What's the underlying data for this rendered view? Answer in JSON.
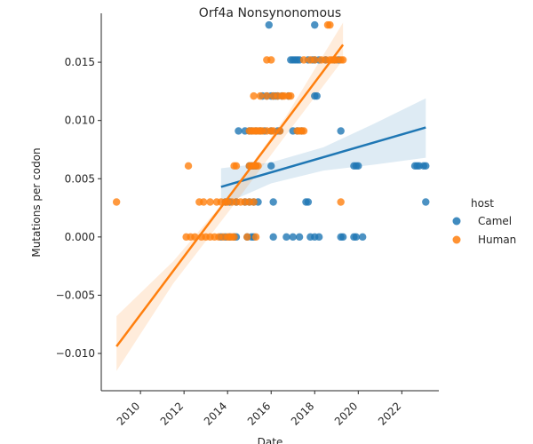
{
  "chart_data": {
    "type": "scatter",
    "title": "Orf4a Nonsynonomous",
    "xlabel": "Date",
    "ylabel": "Mutations per codon",
    "xlim": [
      2008.2,
      2023.7
    ],
    "ylim": [
      -0.0132,
      0.0192
    ],
    "x_ticks": [
      2010,
      2012,
      2014,
      2016,
      2018,
      2020,
      2022
    ],
    "x_tick_labels": [
      "2010",
      "2012",
      "2014",
      "2016",
      "2018",
      "2020",
      "2022"
    ],
    "y_ticks": [
      -0.01,
      -0.005,
      0.0,
      0.005,
      0.01,
      0.015
    ],
    "y_tick_labels": [
      "−0.010",
      "−0.005",
      "0.000",
      "0.005",
      "0.010",
      "0.015"
    ],
    "grid": false,
    "legend": {
      "title": "host",
      "placement": "right"
    },
    "series": [
      {
        "name": "Camel",
        "color": "#1f77b4",
        "points": [
          [
            2015.9,
            0.0182
          ],
          [
            2018.0,
            0.0182
          ],
          [
            2016.9,
            0.0152
          ],
          [
            2017.0,
            0.0152
          ],
          [
            2017.1,
            0.0152
          ],
          [
            2017.2,
            0.0152
          ],
          [
            2017.3,
            0.0152
          ],
          [
            2017.7,
            0.0152
          ],
          [
            2017.9,
            0.0152
          ],
          [
            2018.0,
            0.0152
          ],
          [
            2018.2,
            0.0152
          ],
          [
            2018.5,
            0.0152
          ],
          [
            2018.9,
            0.0152
          ],
          [
            2019.1,
            0.0152
          ],
          [
            2015.6,
            0.0121
          ],
          [
            2015.8,
            0.0121
          ],
          [
            2016.0,
            0.0121
          ],
          [
            2016.1,
            0.0121
          ],
          [
            2016.2,
            0.0121
          ],
          [
            2016.3,
            0.0121
          ],
          [
            2016.5,
            0.0121
          ],
          [
            2016.8,
            0.0121
          ],
          [
            2018.0,
            0.0121
          ],
          [
            2018.1,
            0.0121
          ],
          [
            2014.5,
            0.0091
          ],
          [
            2014.8,
            0.0091
          ],
          [
            2015.0,
            0.0091
          ],
          [
            2015.1,
            0.0091
          ],
          [
            2015.3,
            0.0091
          ],
          [
            2015.5,
            0.0091
          ],
          [
            2015.7,
            0.0091
          ],
          [
            2016.0,
            0.0091
          ],
          [
            2016.3,
            0.0091
          ],
          [
            2016.4,
            0.0091
          ],
          [
            2017.0,
            0.0091
          ],
          [
            2017.2,
            0.0091
          ],
          [
            2017.4,
            0.0091
          ],
          [
            2019.2,
            0.0091
          ],
          [
            2015.0,
            0.0061
          ],
          [
            2015.1,
            0.0061
          ],
          [
            2015.2,
            0.0061
          ],
          [
            2015.3,
            0.0061
          ],
          [
            2016.0,
            0.0061
          ],
          [
            2019.8,
            0.0061
          ],
          [
            2019.9,
            0.0061
          ],
          [
            2020.0,
            0.0061
          ],
          [
            2022.6,
            0.0061
          ],
          [
            2022.7,
            0.0061
          ],
          [
            2022.8,
            0.0061
          ],
          [
            2023.0,
            0.0061
          ],
          [
            2023.1,
            0.0061
          ],
          [
            2013.9,
            0.003
          ],
          [
            2014.1,
            0.003
          ],
          [
            2014.4,
            0.003
          ],
          [
            2014.8,
            0.003
          ],
          [
            2015.0,
            0.003
          ],
          [
            2015.2,
            0.003
          ],
          [
            2015.4,
            0.003
          ],
          [
            2016.1,
            0.003
          ],
          [
            2017.6,
            0.003
          ],
          [
            2017.7,
            0.003
          ],
          [
            2023.1,
            0.003
          ],
          [
            2013.7,
            0.0
          ],
          [
            2013.9,
            0.0
          ],
          [
            2014.1,
            0.0
          ],
          [
            2014.3,
            0.0
          ],
          [
            2014.4,
            0.0
          ],
          [
            2014.9,
            0.0
          ],
          [
            2015.1,
            0.0
          ],
          [
            2015.2,
            0.0
          ],
          [
            2016.1,
            0.0
          ],
          [
            2016.7,
            0.0
          ],
          [
            2017.0,
            0.0
          ],
          [
            2017.3,
            0.0
          ],
          [
            2017.8,
            0.0
          ],
          [
            2018.0,
            0.0
          ],
          [
            2018.2,
            0.0
          ],
          [
            2019.2,
            0.0
          ],
          [
            2019.3,
            0.0
          ],
          [
            2019.8,
            0.0
          ],
          [
            2019.9,
            0.0
          ],
          [
            2020.2,
            0.0
          ]
        ],
        "regression": {
          "x": [
            2013.7,
            2023.1
          ],
          "y": [
            0.0043,
            0.0094
          ]
        },
        "ci": {
          "x": [
            2013.7,
            2016.0,
            2018.4,
            2020.7,
            2023.1
          ],
          "lower": [
            0.0027,
            0.0046,
            0.0057,
            0.0062,
            0.0068
          ],
          "upper": [
            0.0059,
            0.0064,
            0.0077,
            0.0097,
            0.0119
          ]
        }
      },
      {
        "name": "Human",
        "color": "#ff7f0e",
        "points": [
          [
            2008.9,
            0.003
          ],
          [
            2012.1,
            0.0
          ],
          [
            2012.3,
            0.0
          ],
          [
            2012.5,
            0.0
          ],
          [
            2012.8,
            0.0
          ],
          [
            2013.0,
            0.0
          ],
          [
            2013.2,
            0.0
          ],
          [
            2013.4,
            0.0
          ],
          [
            2013.6,
            0.0
          ],
          [
            2013.8,
            0.0
          ],
          [
            2014.0,
            0.0
          ],
          [
            2014.1,
            0.0
          ],
          [
            2014.2,
            0.0
          ],
          [
            2014.3,
            0.0
          ],
          [
            2014.9,
            0.0
          ],
          [
            2015.3,
            0.0
          ],
          [
            2012.2,
            0.0061
          ],
          [
            2012.7,
            0.003
          ],
          [
            2012.9,
            0.003
          ],
          [
            2013.2,
            0.003
          ],
          [
            2013.5,
            0.003
          ],
          [
            2013.7,
            0.003
          ],
          [
            2013.9,
            0.003
          ],
          [
            2014.0,
            0.003
          ],
          [
            2014.2,
            0.003
          ],
          [
            2014.4,
            0.003
          ],
          [
            2014.6,
            0.003
          ],
          [
            2014.8,
            0.003
          ],
          [
            2015.0,
            0.003
          ],
          [
            2015.2,
            0.003
          ],
          [
            2019.2,
            0.003
          ],
          [
            2014.3,
            0.0061
          ],
          [
            2014.4,
            0.0061
          ],
          [
            2015.0,
            0.0061
          ],
          [
            2015.1,
            0.0061
          ],
          [
            2015.2,
            0.0061
          ],
          [
            2015.3,
            0.0061
          ],
          [
            2015.4,
            0.0061
          ],
          [
            2015.0,
            0.0091
          ],
          [
            2015.1,
            0.0091
          ],
          [
            2015.2,
            0.0091
          ],
          [
            2015.3,
            0.0091
          ],
          [
            2015.4,
            0.0091
          ],
          [
            2015.5,
            0.0091
          ],
          [
            2015.6,
            0.0091
          ],
          [
            2015.8,
            0.0091
          ],
          [
            2016.0,
            0.0091
          ],
          [
            2016.1,
            0.0091
          ],
          [
            2016.4,
            0.0091
          ],
          [
            2017.2,
            0.0091
          ],
          [
            2017.3,
            0.0091
          ],
          [
            2017.4,
            0.0091
          ],
          [
            2017.5,
            0.0091
          ],
          [
            2015.2,
            0.0121
          ],
          [
            2015.5,
            0.0121
          ],
          [
            2015.8,
            0.0121
          ],
          [
            2016.1,
            0.0121
          ],
          [
            2016.3,
            0.0121
          ],
          [
            2016.5,
            0.0121
          ],
          [
            2016.6,
            0.0121
          ],
          [
            2016.8,
            0.0121
          ],
          [
            2016.9,
            0.0121
          ],
          [
            2015.8,
            0.0152
          ],
          [
            2016.0,
            0.0152
          ],
          [
            2017.5,
            0.0152
          ],
          [
            2017.8,
            0.0152
          ],
          [
            2018.0,
            0.0152
          ],
          [
            2018.3,
            0.0152
          ],
          [
            2018.5,
            0.0152
          ],
          [
            2018.7,
            0.0152
          ],
          [
            2018.8,
            0.0152
          ],
          [
            2018.9,
            0.0152
          ],
          [
            2019.0,
            0.0152
          ],
          [
            2019.2,
            0.0152
          ],
          [
            2019.3,
            0.0152
          ],
          [
            2018.6,
            0.0182
          ],
          [
            2018.7,
            0.0182
          ]
        ],
        "regression": {
          "x": [
            2008.9,
            2019.3
          ],
          "y": [
            -0.0094,
            0.0165
          ]
        },
        "ci": {
          "x": [
            2008.9,
            2011.5,
            2014.1,
            2016.7,
            2019.3
          ],
          "lower": [
            -0.0115,
            -0.004,
            0.0023,
            0.0088,
            0.0152
          ],
          "upper": [
            -0.0068,
            -0.0021,
            0.0036,
            0.0104,
            0.0184
          ]
        }
      }
    ]
  }
}
